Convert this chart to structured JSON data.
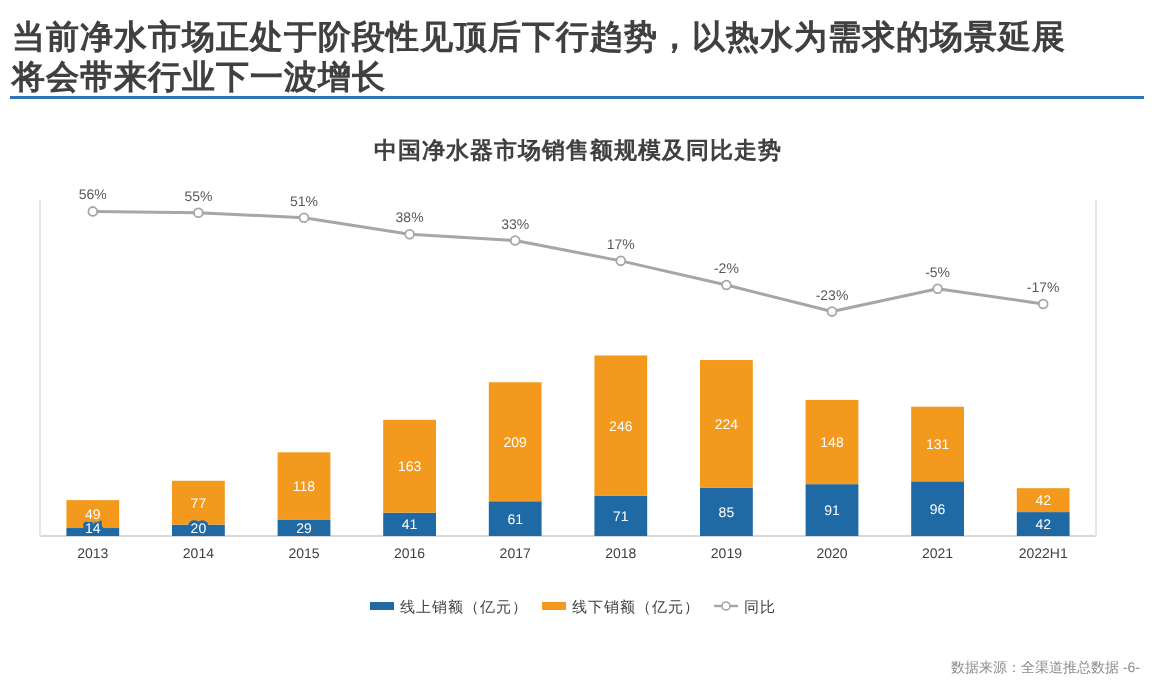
{
  "chart_data": {
    "type": "bar",
    "title": "当前净水市场正处于阶段性见顶后下行趋势，以热水为需求的场景延展将会带来行业下一波增长",
    "subtitle": "中国净水器市场销售额规模及同比走势",
    "categories": [
      "2013",
      "2014",
      "2015",
      "2016",
      "2017",
      "2018",
      "2019",
      "2020",
      "2021",
      "2022H1"
    ],
    "stacked": true,
    "data_labels": true,
    "ylim": [
      0,
      590
    ],
    "y2lim": [
      -200,
      65
    ],
    "tick_labels": "x",
    "legend": "bottom",
    "series": [
      {
        "name": "线上销额（亿元）",
        "color": "#1f6aa5",
        "values": [
          14,
          20,
          29,
          41,
          61,
          71,
          85,
          91,
          96,
          42
        ]
      },
      {
        "name": "线下销额（亿元）",
        "color": "#f39a1e",
        "values": [
          49,
          77,
          118,
          163,
          209,
          246,
          224,
          148,
          131,
          42
        ]
      },
      {
        "name": "同比",
        "type": "line",
        "axis": "y2",
        "color": "#a6a6a6",
        "marker": "circle",
        "values": [
          56,
          55,
          51,
          38,
          33,
          17,
          -2,
          -23,
          -5,
          -17
        ],
        "value_labels": [
          "56%",
          "55%",
          "51%",
          "38%",
          "33%",
          "17%",
          "-2%",
          "-23%",
          "-5%",
          "-17%"
        ]
      }
    ],
    "annotations": [
      "数据来源：全渠道推总数据 -6-"
    ]
  }
}
